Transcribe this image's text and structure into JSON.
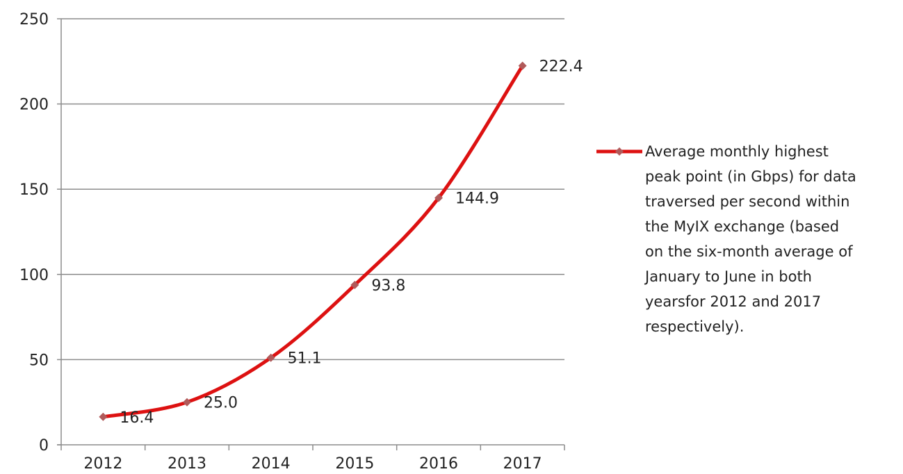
{
  "chart_data": {
    "type": "line",
    "categories": [
      "2012",
      "2013",
      "2014",
      "2015",
      "2016",
      "2017"
    ],
    "series": [
      {
        "name": "Average monthly highest peak point (in Gbps) for data traversed per second within the MyIX exchange (based on the six-month average of January to June in both yearsfor 2012 and 2017 respectively).",
        "values": [
          16.4,
          25.0,
          51.1,
          93.8,
          144.9,
          222.4
        ],
        "value_labels": [
          "16.4",
          "25.0",
          "51.1",
          "93.8",
          "144.9",
          "222.4"
        ]
      }
    ],
    "y_ticks": [
      "0",
      "50",
      "100",
      "150",
      "200",
      "250"
    ],
    "ylim": [
      0,
      250
    ],
    "grid": "horizontal",
    "legend_position": "right",
    "title": "",
    "xlabel": "",
    "ylabel": "",
    "legend_lines": [
      "Average monthly highest",
      "peak point (in Gbps) for data",
      "traversed per second within",
      "the MyIX exchange (based",
      "on the six-month average of",
      "January to June in both",
      "yearsfor 2012 and 2017",
      "respectively)."
    ],
    "colors": {
      "line": "#dd1111",
      "marker": "#b05a5a",
      "grid": "#8c8c8c",
      "axis": "#8c8c8c"
    }
  }
}
